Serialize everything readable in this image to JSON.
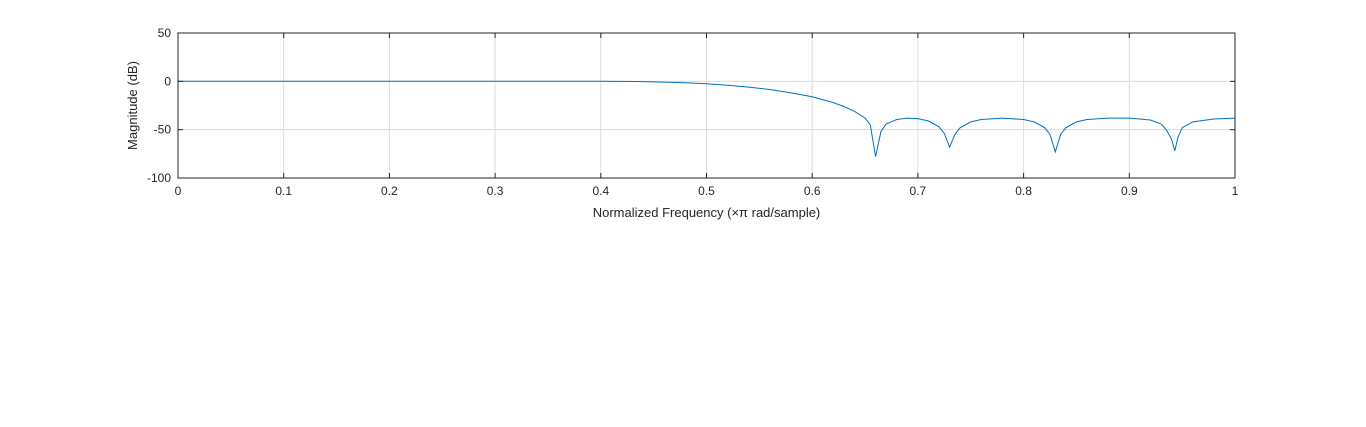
{
  "chart_data": {
    "type": "line",
    "xlabel": "Normalized Frequency  (×π rad/sample)",
    "ylabel": "Magnitude (dB)",
    "xlim": [
      0,
      1
    ],
    "ylim": [
      -100,
      50
    ],
    "x_ticks": [
      0,
      0.1,
      0.2,
      0.3,
      0.4,
      0.5,
      0.6,
      0.7,
      0.8,
      0.9,
      1
    ],
    "x_tick_labels": [
      "0",
      "0.1",
      "0.2",
      "0.3",
      "0.4",
      "0.5",
      "0.6",
      "0.7",
      "0.8",
      "0.9",
      "1"
    ],
    "y_ticks": [
      50,
      0,
      -50,
      -100
    ],
    "y_tick_labels": [
      "50",
      "0",
      "-50",
      "-100"
    ],
    "grid": true,
    "line_color": "#0072BD",
    "series": [
      {
        "x": [
          0,
          0.1,
          0.2,
          0.3,
          0.4,
          0.44,
          0.46,
          0.48,
          0.5,
          0.52,
          0.54,
          0.56,
          0.58,
          0.6,
          0.62,
          0.63,
          0.64,
          0.65,
          0.655,
          0.66,
          0.665,
          0.67,
          0.68,
          0.69,
          0.7,
          0.71,
          0.72,
          0.725,
          0.73,
          0.735,
          0.74,
          0.75,
          0.76,
          0.78,
          0.8,
          0.81,
          0.82,
          0.825,
          0.83,
          0.835,
          0.84,
          0.85,
          0.86,
          0.88,
          0.9,
          0.92,
          0.93,
          0.935,
          0.94,
          0.943,
          0.946,
          0.95,
          0.96,
          0.98,
          1.0
        ],
        "y": [
          0,
          0,
          0,
          0,
          0,
          -0.3,
          -0.8,
          -1.5,
          -2.5,
          -4,
          -6,
          -8.5,
          -12,
          -16,
          -22,
          -26,
          -31,
          -38,
          -45,
          -78,
          -52,
          -44,
          -39.5,
          -38,
          -38.5,
          -41,
          -47,
          -54,
          -68,
          -55,
          -48,
          -42,
          -39.5,
          -38,
          -39.5,
          -42,
          -48,
          -55,
          -73,
          -55,
          -48,
          -42,
          -39.5,
          -38,
          -38,
          -40,
          -44,
          -50,
          -60,
          -72,
          -58,
          -48,
          -42,
          -39,
          -38
        ]
      }
    ]
  }
}
